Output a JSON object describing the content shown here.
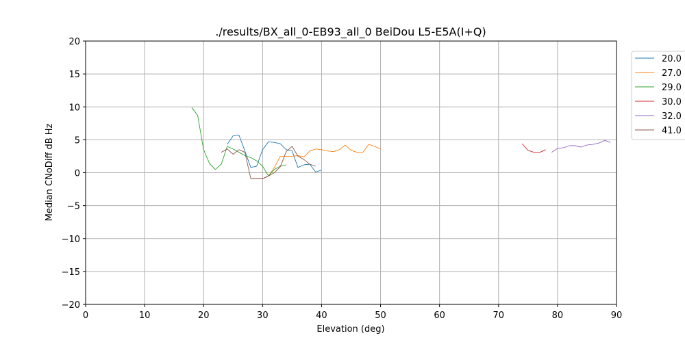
{
  "chart_data": {
    "type": "line",
    "title": "./results/BX_all_0-EB93_all_0 BeiDou L5-E5A(I+Q)",
    "xlabel": "Elevation (deg)",
    "ylabel": "Median CNoDiff dB Hz",
    "xlim": [
      0,
      90
    ],
    "ylim": [
      -20,
      20
    ],
    "xticks": [
      0,
      10,
      20,
      30,
      40,
      50,
      60,
      70,
      80,
      90
    ],
    "yticks": [
      -20,
      -15,
      -10,
      -5,
      0,
      5,
      10,
      15,
      20
    ],
    "grid": true,
    "legend_position": "outside-top-right",
    "series": [
      {
        "name": "20.0",
        "color": "#1f77b4",
        "x": [
          24,
          25,
          26,
          27,
          28,
          29,
          30,
          31,
          32,
          33,
          34,
          35,
          36,
          37,
          38,
          39,
          40
        ],
        "y": [
          4.3,
          5.6,
          5.7,
          3.3,
          0.8,
          1.0,
          3.5,
          4.7,
          4.6,
          4.4,
          3.5,
          3.3,
          0.8,
          1.2,
          1.3,
          0.1,
          0.4
        ]
      },
      {
        "name": "27.0",
        "color": "#ff7f0e",
        "x": [
          31,
          32,
          33,
          34,
          35,
          36,
          37,
          38,
          39,
          40,
          41,
          42,
          43,
          44,
          45,
          46,
          47,
          48,
          49,
          50
        ],
        "y": [
          -0.5,
          0.8,
          2.5,
          2.5,
          2.5,
          2.6,
          2.4,
          3.3,
          3.6,
          3.5,
          3.3,
          3.2,
          3.5,
          4.2,
          3.4,
          3.1,
          3.1,
          4.3,
          4.0,
          3.6
        ]
      },
      {
        "name": "29.0",
        "color": "#2ca02c",
        "x": [
          18,
          19,
          20,
          21,
          22,
          23,
          24,
          25,
          26,
          27,
          28,
          29,
          30,
          31,
          32,
          33,
          34
        ],
        "y": [
          9.9,
          8.7,
          3.5,
          1.4,
          0.5,
          1.3,
          4.0,
          3.6,
          3.1,
          2.6,
          2.3,
          1.8,
          1.0,
          -0.5,
          0.5,
          1.0,
          1.2
        ]
      },
      {
        "name": "30.0",
        "color": "#d62728",
        "x": [
          28,
          29,
          30,
          31,
          74,
          75,
          76,
          77,
          78
        ],
        "y": [
          -0.9,
          -0.9,
          -0.9,
          -0.5,
          4.4,
          3.4,
          3.1,
          3.1,
          3.5
        ],
        "breaks_after_index": [
          3
        ]
      },
      {
        "name": "32.0",
        "color": "#9467bd",
        "x": [
          79,
          80,
          81,
          82,
          83,
          84,
          85,
          86,
          87,
          88,
          89
        ],
        "y": [
          3.1,
          3.7,
          3.8,
          4.1,
          4.1,
          3.9,
          4.2,
          4.3,
          4.5,
          4.9,
          4.6
        ]
      },
      {
        "name": "41.0",
        "color": "#8c564b",
        "x": [
          23,
          24,
          25,
          26,
          27,
          28,
          29,
          30,
          31,
          32,
          33,
          34,
          35,
          36,
          37,
          38,
          39
        ],
        "y": [
          3.1,
          3.6,
          2.8,
          3.5,
          3.1,
          -0.9,
          -0.9,
          -0.9,
          -0.5,
          0.0,
          0.9,
          3.2,
          4.0,
          2.5,
          2.0,
          1.3,
          1.0
        ]
      }
    ]
  }
}
